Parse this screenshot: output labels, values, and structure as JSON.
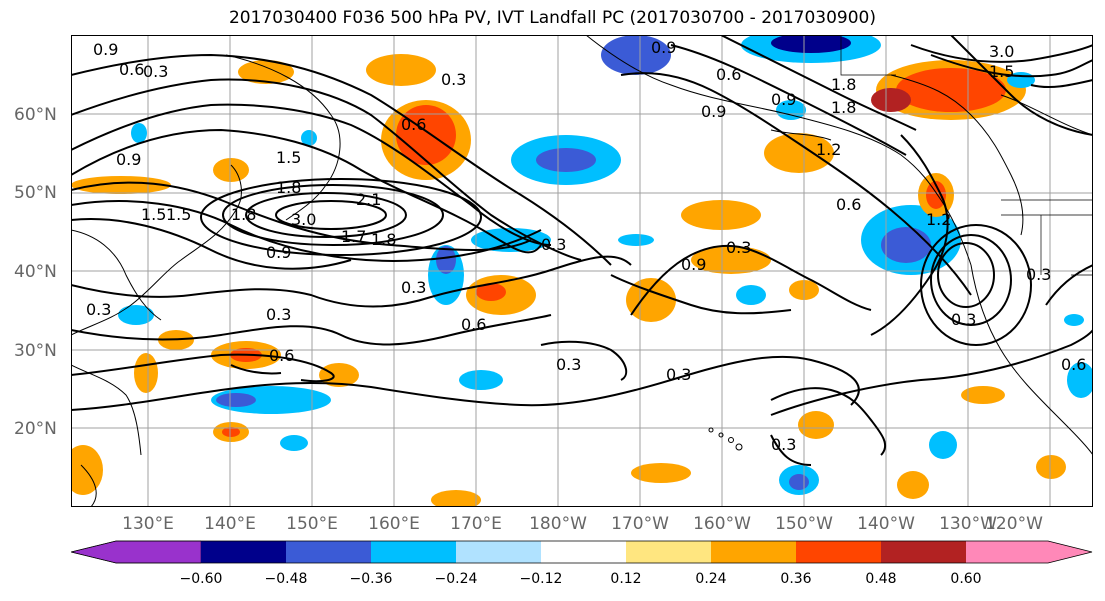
{
  "title": "2017030400 F036 500 hPa PV, IVT Landfall PC (2017030700 - 2017030900)",
  "lat_labels": [
    "60°N",
    "50°N",
    "40°N",
    "30°N",
    "20°N"
  ],
  "lon_labels": [
    "130°E",
    "140°E",
    "150°E",
    "160°E",
    "170°E",
    "180°W",
    "170°W",
    "160°W",
    "150°W",
    "140°W",
    "130°W",
    "120°W"
  ],
  "colorbar": {
    "tick_labels": [
      "−0.60",
      "−0.48",
      "−0.36",
      "−0.24",
      "−0.12",
      "0.12",
      "0.24",
      "0.36",
      "0.48",
      "0.60"
    ],
    "colors": [
      "#9932cc",
      "#00008b",
      "#3b5bd6",
      "#00bfff",
      "#b0e2ff",
      "#ffffff",
      "#ffe680",
      "#ffa500",
      "#ff4500",
      "#b22222",
      "#ff88b8"
    ]
  },
  "contour_labels": [
    "0.9",
    "0.6",
    "0.3",
    "0.3",
    "0.9",
    "0.6",
    "0.9",
    "1.5",
    "1.5",
    "1.8",
    "2.1",
    "3.0",
    "1.7",
    "0.9",
    "0.6",
    "0.3",
    "0.3",
    "0.6",
    "0.6",
    "0.3",
    "0.3",
    "0.3",
    "0.9",
    "0.3",
    "0.6",
    "0.9",
    "1.2",
    "0.6",
    "3.0",
    "1.8",
    "1.5",
    "1.2",
    "0.3",
    "0.3",
    "0.3",
    "0.3",
    "1.8",
    "1.5",
    "1.8",
    "1.8",
    "0.9"
  ],
  "colors": {
    "grid": "#a0a0a0",
    "contour": "#000000",
    "coast": "#000000"
  }
}
